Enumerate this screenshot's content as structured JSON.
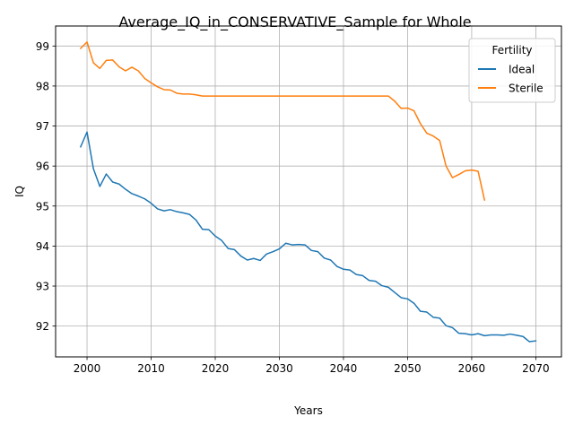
{
  "chart_data": {
    "type": "line",
    "title": "Average_IQ_in_CONSERVATIVE_Sample for Whole",
    "xlabel": "Years",
    "ylabel": "IQ",
    "xlim": [
      1995.1,
      2074.0
    ],
    "ylim": [
      91.23,
      99.5
    ],
    "xticks": [
      2000,
      2010,
      2020,
      2030,
      2040,
      2050,
      2060,
      2070
    ],
    "yticks": [
      92,
      93,
      94,
      95,
      96,
      97,
      98,
      99
    ],
    "grid": true,
    "legend": {
      "title": "Fertility",
      "placement": "top-right"
    },
    "series": [
      {
        "name": "Ideal",
        "color": "#1f77b4",
        "x": [
          1999,
          2000,
          2001,
          2002,
          2003,
          2004,
          2005,
          2006,
          2007,
          2008,
          2009,
          2010,
          2011,
          2012,
          2013,
          2014,
          2015,
          2016,
          2017,
          2018,
          2019,
          2020,
          2021,
          2022,
          2023,
          2024,
          2025,
          2026,
          2027,
          2028,
          2029,
          2030,
          2031,
          2032,
          2033,
          2034,
          2035,
          2036,
          2037,
          2038,
          2039,
          2040,
          2041,
          2042,
          2043,
          2044,
          2045,
          2046,
          2047,
          2048,
          2049,
          2050,
          2051,
          2052,
          2053,
          2054,
          2055,
          2056,
          2057,
          2058,
          2059,
          2060,
          2061,
          2062,
          2063,
          2064,
          2065,
          2066,
          2067,
          2068,
          2069,
          2070
        ],
        "y": [
          96.48,
          96.85,
          95.93,
          95.49,
          95.8,
          95.6,
          95.55,
          95.42,
          95.31,
          95.25,
          95.18,
          95.07,
          94.93,
          94.88,
          94.91,
          94.86,
          94.83,
          94.79,
          94.65,
          94.42,
          94.41,
          94.25,
          94.14,
          93.94,
          93.91,
          93.75,
          93.65,
          93.69,
          93.64,
          93.8,
          93.86,
          93.93,
          94.07,
          94.03,
          94.04,
          94.03,
          93.89,
          93.86,
          93.7,
          93.65,
          93.49,
          93.42,
          93.4,
          93.29,
          93.26,
          93.14,
          93.12,
          93.01,
          92.97,
          92.84,
          92.71,
          92.68,
          92.57,
          92.37,
          92.35,
          92.22,
          92.2,
          92.01,
          91.96,
          91.82,
          91.81,
          91.78,
          91.81,
          91.76,
          91.78,
          91.78,
          91.77,
          91.8,
          91.77,
          91.74,
          91.61,
          91.63
        ]
      },
      {
        "name": "Sterile",
        "color": "#ff7f0e",
        "x": [
          1999,
          2000,
          2001,
          2002,
          2003,
          2004,
          2005,
          2006,
          2007,
          2008,
          2009,
          2010,
          2011,
          2012,
          2013,
          2014,
          2015,
          2016,
          2017,
          2018,
          2019,
          2020,
          2025,
          2030,
          2035,
          2040,
          2045,
          2047,
          2048,
          2049,
          2050,
          2051,
          2052,
          2053,
          2054,
          2055,
          2056,
          2057,
          2058,
          2059,
          2060,
          2061,
          2062
        ],
        "y": [
          98.94,
          99.1,
          98.58,
          98.44,
          98.64,
          98.65,
          98.48,
          98.38,
          98.47,
          98.38,
          98.19,
          98.08,
          97.98,
          97.91,
          97.9,
          97.82,
          97.8,
          97.8,
          97.78,
          97.75,
          97.75,
          97.75,
          97.75,
          97.75,
          97.75,
          97.75,
          97.75,
          97.75,
          97.62,
          97.44,
          97.45,
          97.38,
          97.06,
          96.82,
          96.75,
          96.64,
          96.0,
          95.71,
          95.79,
          95.88,
          95.9,
          95.87,
          95.15
        ]
      }
    ]
  }
}
